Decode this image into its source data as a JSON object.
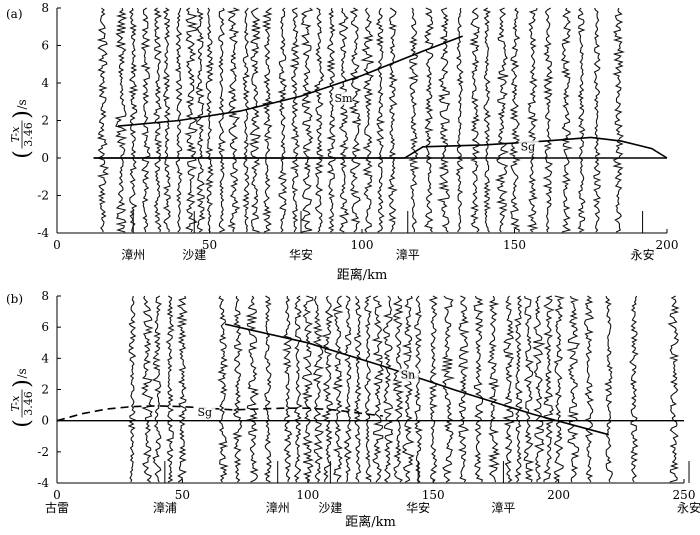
{
  "chart_data": [
    {
      "type": "line",
      "panel_label": "(a)",
      "xlabel": "距离/km",
      "ylabel": "(T-x/3.46)/s",
      "ylabel_parts": {
        "open": "(",
        "num": "T-x",
        "den": "3.46",
        "close": ")",
        "unit": "/s"
      },
      "xlim": [
        0,
        200
      ],
      "ylim": [
        -4,
        8
      ],
      "x_ticks": [
        0,
        50,
        100,
        150,
        200
      ],
      "y_ticks": [
        -4,
        -2,
        0,
        2,
        4,
        6,
        8
      ],
      "stations": [
        {
          "name": "漳州",
          "x": 25
        },
        {
          "name": "沙建",
          "x": 45
        },
        {
          "name": "华安",
          "x": 80
        },
        {
          "name": "漳平",
          "x": 115
        },
        {
          "name": "永安",
          "x": 192
        }
      ],
      "trace_x": [
        15,
        21,
        25,
        29,
        33,
        36,
        40,
        44,
        47,
        50,
        54,
        58,
        62,
        65,
        69,
        74,
        78,
        82,
        86,
        90,
        94,
        98,
        102,
        106,
        110,
        117,
        122,
        127,
        132,
        137,
        141,
        146,
        150,
        156,
        161,
        167,
        172,
        177,
        184
      ],
      "series": [
        {
          "name": "Sm",
          "x": [
            20,
            40,
            60,
            80,
            100,
            120,
            133
          ],
          "y": [
            1.7,
            2.0,
            2.5,
            3.3,
            4.4,
            5.7,
            6.5
          ]
        },
        {
          "name": "Sg",
          "x": [
            12,
            114,
            120,
            140,
            160,
            175,
            185,
            195,
            200
          ],
          "y": [
            0.0,
            0.0,
            0.6,
            0.7,
            0.9,
            1.1,
            0.9,
            0.5,
            0.0
          ]
        }
      ],
      "curve_labels": [
        {
          "text": "Sm",
          "x": 91,
          "y": 3.0
        },
        {
          "text": "Sg",
          "x": 152,
          "y": 0.4
        }
      ],
      "baseline_range": [
        12,
        200
      ]
    },
    {
      "type": "line",
      "panel_label": "(b)",
      "xlabel": "距离/km",
      "ylabel": "(T-x/3.46)/s",
      "ylabel_parts": {
        "open": "(",
        "num": "T-x",
        "den": "3.46",
        "close": ")",
        "unit": "/s"
      },
      "xlim": [
        0,
        250
      ],
      "ylim": [
        -4,
        8
      ],
      "x_ticks": [
        0,
        50,
        100,
        150,
        200,
        250
      ],
      "y_ticks": [
        -4,
        -2,
        0,
        2,
        4,
        6,
        8
      ],
      "stations": [
        {
          "name": "古雷",
          "x": 0
        },
        {
          "name": "漳浦",
          "x": 43
        },
        {
          "name": "漳州",
          "x": 88
        },
        {
          "name": "沙建",
          "x": 109
        },
        {
          "name": "华安",
          "x": 144
        },
        {
          "name": "漳平",
          "x": 178
        },
        {
          "name": "永安",
          "x": 252
        }
      ],
      "trace_x": [
        30,
        36,
        40,
        45,
        50,
        66,
        72,
        78,
        84,
        92,
        96,
        100,
        104,
        108,
        112,
        116,
        120,
        124,
        128,
        132,
        136,
        140,
        144,
        150,
        156,
        162,
        168,
        174,
        180,
        184,
        188,
        192,
        196,
        200,
        206,
        212,
        220,
        230,
        246
      ],
      "series": [
        {
          "name": "Sn",
          "x": [
            67,
            100,
            130,
            160,
            190,
            220
          ],
          "y": [
            6.2,
            5.0,
            3.5,
            1.9,
            0.4,
            -0.9
          ]
        },
        {
          "name": "Sg",
          "x": [
            0,
            10,
            20,
            30,
            40,
            50,
            60,
            70,
            80,
            90,
            100,
            110,
            120,
            130
          ],
          "y": [
            0.0,
            0.45,
            0.75,
            0.9,
            0.95,
            0.9,
            0.8,
            0.7,
            0.75,
            0.8,
            0.8,
            0.7,
            0.5,
            0.3
          ],
          "dashed": true
        }
      ],
      "curve_labels": [
        {
          "text": "Sg",
          "x": 56,
          "y": 0.3
        },
        {
          "text": "Sn",
          "x": 137,
          "y": 2.7
        }
      ],
      "baseline_range": [
        0,
        250
      ]
    }
  ]
}
